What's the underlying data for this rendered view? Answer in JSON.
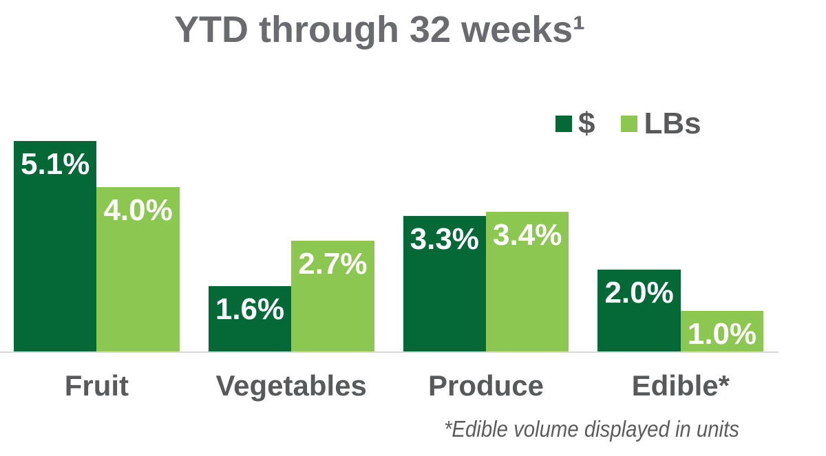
{
  "title": "YTD through 32 weeks¹",
  "footnote": "*Edible volume displayed in units",
  "colors": {
    "dollars_green": "#046937",
    "lbs_green": "#8cc751",
    "text_gray": "#58595b",
    "title_gray": "#6a6b6e",
    "axis_line_gray": "#d8d8d8",
    "data_label_white": "#ffffff"
  },
  "chart_data": {
    "type": "bar",
    "title": "YTD through 32 weeks¹",
    "categories": [
      "Fruit",
      "Vegetables",
      "Produce",
      "Edible*"
    ],
    "series": [
      {
        "name": "$",
        "color": "#046937",
        "values": [
          5.1,
          1.6,
          3.3,
          2.0
        ],
        "labels": [
          "5.1%",
          "1.6%",
          "3.3%",
          "2.0%"
        ]
      },
      {
        "name": "LBs",
        "color": "#8cc751",
        "values": [
          4.0,
          2.7,
          3.4,
          1.0
        ],
        "labels": [
          "4.0%",
          "2.7%",
          "3.4%",
          "1.0%"
        ]
      }
    ],
    "xlabel": "",
    "ylabel": "",
    "ylim": [
      0,
      5.5
    ],
    "grid": false,
    "axis_ticks_visible": false,
    "legend_position": "top-right",
    "data_label_position": "inside-end",
    "footnote": "*Edible volume displayed in units"
  }
}
